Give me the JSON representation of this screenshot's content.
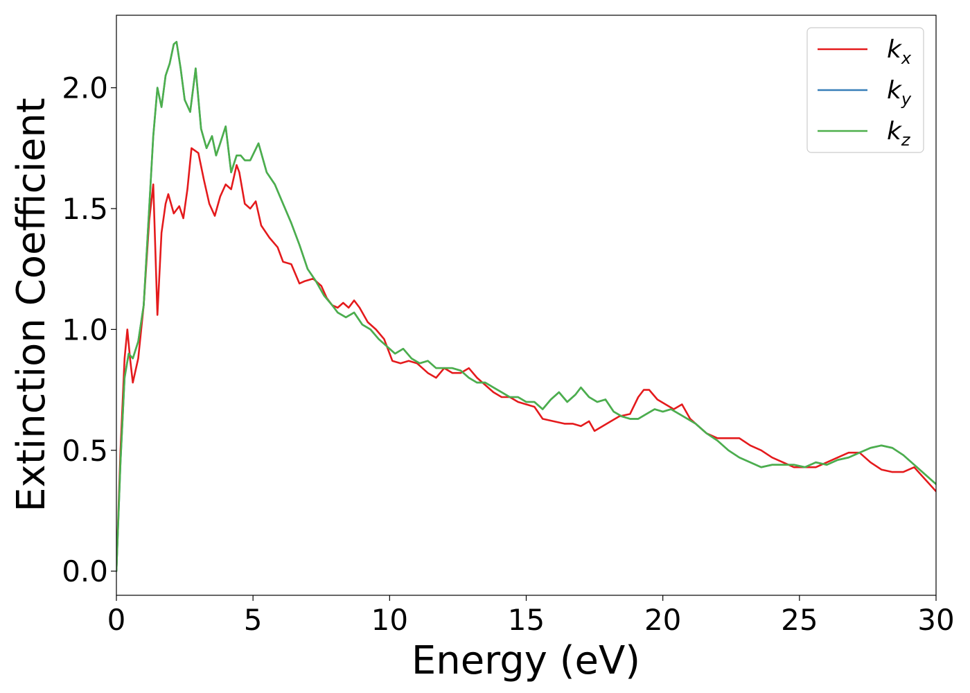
{
  "chart_data": {
    "type": "line",
    "title": "",
    "xlabel": "Energy (eV)",
    "ylabel": "Extinction Coefficient",
    "xlim": [
      0,
      30
    ],
    "ylim": [
      -0.1,
      2.3
    ],
    "xticks": [
      0,
      5,
      10,
      15,
      20,
      25,
      30
    ],
    "xtick_labels": [
      "0",
      "5",
      "10",
      "15",
      "20",
      "25",
      "30"
    ],
    "yticks": [
      0.0,
      0.5,
      1.0,
      1.5,
      2.0
    ],
    "ytick_labels": [
      "0.0",
      "0.5",
      "1.0",
      "1.5",
      "2.0"
    ],
    "grid": false,
    "legend_position": "top-right",
    "series": [
      {
        "name": "k_x",
        "label_base": "k",
        "label_sub": "x",
        "color": "#e41a1c",
        "x": [
          0,
          0.15,
          0.3,
          0.4,
          0.5,
          0.6,
          0.8,
          1.0,
          1.2,
          1.35,
          1.5,
          1.65,
          1.8,
          1.9,
          2.1,
          2.3,
          2.45,
          2.6,
          2.75,
          3.0,
          3.2,
          3.4,
          3.6,
          3.8,
          4.0,
          4.2,
          4.4,
          4.5,
          4.7,
          4.9,
          5.1,
          5.3,
          5.6,
          5.9,
          6.1,
          6.4,
          6.7,
          6.9,
          7.2,
          7.5,
          7.7,
          7.9,
          8.1,
          8.3,
          8.5,
          8.7,
          8.9,
          9.2,
          9.5,
          9.8,
          10.1,
          10.4,
          10.7,
          11.0,
          11.2,
          11.4,
          11.7,
          12.0,
          12.3,
          12.6,
          12.9,
          13.2,
          13.5,
          13.8,
          14.1,
          14.4,
          14.7,
          15.0,
          15.3,
          15.6,
          16.0,
          16.4,
          16.7,
          17.0,
          17.3,
          17.5,
          17.8,
          18.1,
          18.4,
          18.8,
          19.1,
          19.3,
          19.5,
          19.8,
          20.1,
          20.4,
          20.7,
          21.0,
          21.3,
          21.6,
          22.0,
          22.4,
          22.8,
          23.2,
          23.6,
          24.0,
          24.4,
          24.8,
          25.2,
          25.6,
          26.0,
          26.4,
          26.8,
          27.2,
          27.6,
          28.0,
          28.4,
          28.8,
          29.2,
          29.6,
          30.0
        ],
        "y": [
          0.0,
          0.5,
          0.88,
          1.0,
          0.88,
          0.78,
          0.88,
          1.1,
          1.45,
          1.6,
          1.06,
          1.4,
          1.52,
          1.56,
          1.48,
          1.51,
          1.46,
          1.58,
          1.75,
          1.73,
          1.62,
          1.52,
          1.47,
          1.55,
          1.6,
          1.58,
          1.68,
          1.65,
          1.52,
          1.5,
          1.53,
          1.43,
          1.38,
          1.34,
          1.28,
          1.27,
          1.19,
          1.2,
          1.21,
          1.18,
          1.13,
          1.1,
          1.09,
          1.11,
          1.09,
          1.12,
          1.09,
          1.03,
          1.0,
          0.96,
          0.87,
          0.86,
          0.87,
          0.86,
          0.84,
          0.82,
          0.8,
          0.84,
          0.82,
          0.82,
          0.84,
          0.8,
          0.77,
          0.74,
          0.72,
          0.72,
          0.7,
          0.69,
          0.68,
          0.63,
          0.62,
          0.61,
          0.61,
          0.6,
          0.62,
          0.58,
          0.6,
          0.62,
          0.64,
          0.65,
          0.72,
          0.75,
          0.75,
          0.71,
          0.69,
          0.67,
          0.69,
          0.63,
          0.6,
          0.57,
          0.55,
          0.55,
          0.55,
          0.52,
          0.5,
          0.47,
          0.45,
          0.43,
          0.43,
          0.43,
          0.45,
          0.47,
          0.49,
          0.49,
          0.45,
          0.42,
          0.41,
          0.41,
          0.43,
          0.38,
          0.33
        ]
      },
      {
        "name": "k_y",
        "label_base": "k",
        "label_sub": "y",
        "color": "#377eb8",
        "x": [
          0,
          0.15,
          0.3,
          0.45,
          0.6,
          0.8,
          1.0,
          1.2,
          1.35,
          1.5,
          1.65,
          1.8,
          1.95,
          2.1,
          2.2,
          2.35,
          2.5,
          2.7,
          2.9,
          3.1,
          3.3,
          3.5,
          3.65,
          3.8,
          4.0,
          4.2,
          4.4,
          4.55,
          4.7,
          4.9,
          5.2,
          5.5,
          5.8,
          6.1,
          6.4,
          6.7,
          7.0,
          7.3,
          7.6,
          7.9,
          8.1,
          8.4,
          8.7,
          9.0,
          9.3,
          9.6,
          9.9,
          10.2,
          10.5,
          10.8,
          11.1,
          11.4,
          11.7,
          12.0,
          12.3,
          12.6,
          12.9,
          13.2,
          13.5,
          13.8,
          14.1,
          14.4,
          14.7,
          15.0,
          15.3,
          15.6,
          15.9,
          16.2,
          16.5,
          16.8,
          17.0,
          17.3,
          17.6,
          17.9,
          18.2,
          18.5,
          18.8,
          19.1,
          19.4,
          19.7,
          20.0,
          20.3,
          20.6,
          20.9,
          21.2,
          21.6,
          22.0,
          22.4,
          22.8,
          23.2,
          23.6,
          24.0,
          24.4,
          24.8,
          25.2,
          25.6,
          26.0,
          26.4,
          26.8,
          27.2,
          27.6,
          28.0,
          28.4,
          28.8,
          29.2,
          29.6,
          30.0
        ],
        "y": [
          0.0,
          0.45,
          0.8,
          0.9,
          0.88,
          0.95,
          1.1,
          1.5,
          1.8,
          2.0,
          1.92,
          2.05,
          2.1,
          2.18,
          2.19,
          2.08,
          1.95,
          1.9,
          2.08,
          1.83,
          1.75,
          1.8,
          1.72,
          1.77,
          1.84,
          1.65,
          1.72,
          1.72,
          1.7,
          1.7,
          1.77,
          1.65,
          1.6,
          1.52,
          1.44,
          1.35,
          1.25,
          1.2,
          1.14,
          1.1,
          1.07,
          1.05,
          1.07,
          1.02,
          1.0,
          0.96,
          0.93,
          0.9,
          0.92,
          0.88,
          0.86,
          0.87,
          0.84,
          0.84,
          0.84,
          0.83,
          0.8,
          0.78,
          0.78,
          0.76,
          0.74,
          0.72,
          0.72,
          0.7,
          0.7,
          0.67,
          0.71,
          0.74,
          0.7,
          0.73,
          0.76,
          0.72,
          0.7,
          0.71,
          0.66,
          0.64,
          0.63,
          0.63,
          0.65,
          0.67,
          0.66,
          0.67,
          0.65,
          0.63,
          0.61,
          0.57,
          0.54,
          0.5,
          0.47,
          0.45,
          0.43,
          0.44,
          0.44,
          0.44,
          0.43,
          0.45,
          0.44,
          0.46,
          0.47,
          0.49,
          0.51,
          0.52,
          0.51,
          0.48,
          0.44,
          0.4,
          0.36
        ]
      },
      {
        "name": "k_z",
        "label_base": "k",
        "label_sub": "z",
        "color": "#4daf4a",
        "x": [
          0,
          0.15,
          0.3,
          0.45,
          0.6,
          0.8,
          1.0,
          1.2,
          1.35,
          1.5,
          1.65,
          1.8,
          1.95,
          2.1,
          2.2,
          2.35,
          2.5,
          2.7,
          2.9,
          3.1,
          3.3,
          3.5,
          3.65,
          3.8,
          4.0,
          4.2,
          4.4,
          4.55,
          4.7,
          4.9,
          5.2,
          5.5,
          5.8,
          6.1,
          6.4,
          6.7,
          7.0,
          7.3,
          7.6,
          7.9,
          8.1,
          8.4,
          8.7,
          9.0,
          9.3,
          9.6,
          9.9,
          10.2,
          10.5,
          10.8,
          11.1,
          11.4,
          11.7,
          12.0,
          12.3,
          12.6,
          12.9,
          13.2,
          13.5,
          13.8,
          14.1,
          14.4,
          14.7,
          15.0,
          15.3,
          15.6,
          15.9,
          16.2,
          16.5,
          16.8,
          17.0,
          17.3,
          17.6,
          17.9,
          18.2,
          18.5,
          18.8,
          19.1,
          19.4,
          19.7,
          20.0,
          20.3,
          20.6,
          20.9,
          21.2,
          21.6,
          22.0,
          22.4,
          22.8,
          23.2,
          23.6,
          24.0,
          24.4,
          24.8,
          25.2,
          25.6,
          26.0,
          26.4,
          26.8,
          27.2,
          27.6,
          28.0,
          28.4,
          28.8,
          29.2,
          29.6,
          30.0
        ],
        "y": [
          0.0,
          0.45,
          0.8,
          0.9,
          0.88,
          0.95,
          1.1,
          1.5,
          1.8,
          2.0,
          1.92,
          2.05,
          2.1,
          2.18,
          2.19,
          2.08,
          1.95,
          1.9,
          2.08,
          1.83,
          1.75,
          1.8,
          1.72,
          1.77,
          1.84,
          1.65,
          1.72,
          1.72,
          1.7,
          1.7,
          1.77,
          1.65,
          1.6,
          1.52,
          1.44,
          1.35,
          1.25,
          1.2,
          1.14,
          1.1,
          1.07,
          1.05,
          1.07,
          1.02,
          1.0,
          0.96,
          0.93,
          0.9,
          0.92,
          0.88,
          0.86,
          0.87,
          0.84,
          0.84,
          0.84,
          0.83,
          0.8,
          0.78,
          0.78,
          0.76,
          0.74,
          0.72,
          0.72,
          0.7,
          0.7,
          0.67,
          0.71,
          0.74,
          0.7,
          0.73,
          0.76,
          0.72,
          0.7,
          0.71,
          0.66,
          0.64,
          0.63,
          0.63,
          0.65,
          0.67,
          0.66,
          0.67,
          0.65,
          0.63,
          0.61,
          0.57,
          0.54,
          0.5,
          0.47,
          0.45,
          0.43,
          0.44,
          0.44,
          0.44,
          0.43,
          0.45,
          0.44,
          0.46,
          0.47,
          0.49,
          0.51,
          0.52,
          0.51,
          0.48,
          0.44,
          0.4,
          0.36
        ]
      }
    ]
  }
}
